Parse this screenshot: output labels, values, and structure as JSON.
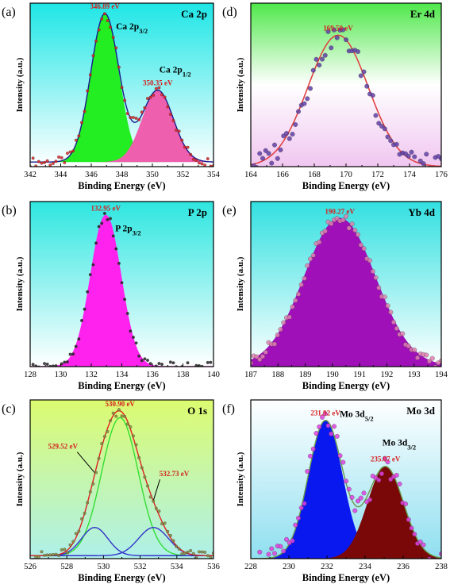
{
  "chart_data": [
    {
      "id": "a",
      "type": "area",
      "panel_letter": "(a)",
      "title": "Ca 2p",
      "xlabel": "Binding Energy (eV)",
      "ylabel": "Intensity (a.u.)",
      "xlim": [
        342,
        354
      ],
      "xticks": [
        342,
        344,
        346,
        348,
        350,
        352,
        354
      ],
      "ylim": [
        0,
        1.07
      ],
      "bg": [
        "#1fe6e6",
        "#ffffff"
      ],
      "baseline": 0.03,
      "peaks": [
        {
          "name": "Ca 2p3/2",
          "label_main": "Ca 2p",
          "label_sub": "3/2",
          "center": 346.89,
          "center_label": "346.89 eV",
          "height": 0.97,
          "sigma": 0.92,
          "color": "#22ee22"
        },
        {
          "name": "Ca 2p1/2",
          "label_main": "Ca 2p",
          "label_sub": "1/2",
          "center": 350.35,
          "center_label": "350.35 eV",
          "height": 0.47,
          "sigma": 1.02,
          "color": "#ee5fae"
        }
      ],
      "envelope_color": "#1a1a8c",
      "point_color": "#e02020"
    },
    {
      "id": "b",
      "type": "area",
      "panel_letter": "(b)",
      "title": "P 2p",
      "xlabel": "Binding Energy (eV)",
      "ylabel": "Intensity (a.u.)",
      "xlim": [
        128,
        140
      ],
      "xticks": [
        128,
        130,
        132,
        134,
        136,
        138,
        140
      ],
      "ylim": [
        0,
        1.07
      ],
      "bg": [
        "#2ee6e0",
        "#ffffff"
      ],
      "baseline": 0.0,
      "peaks": [
        {
          "name": "P 2p3/2",
          "label_main": "P 2p",
          "label_sub": "3/2",
          "center": 132.95,
          "center_label": "132.95 eV",
          "height": 0.98,
          "sigma": 0.98,
          "color": "#ff22ee"
        }
      ],
      "envelope_color": "#ff22ee",
      "point_color": "#222222"
    },
    {
      "id": "c",
      "type": "line",
      "panel_letter": "(c)",
      "title": "O 1s",
      "xlabel": "Binding Energy (eV)",
      "ylabel": "Intensity (a.u.)",
      "xlim": [
        526,
        536
      ],
      "xticks": [
        526,
        528,
        530,
        532,
        534,
        536
      ],
      "ylim": [
        0,
        1.07
      ],
      "bg": [
        "#dcfb70",
        "#aef0ea"
      ],
      "baseline": 0.02,
      "peaks": [
        {
          "name": "O 1s main",
          "center": 530.9,
          "center_label": "530.90 eV",
          "height": 0.93,
          "sigma": 1.0,
          "color": "#33dd33"
        },
        {
          "name": "O 1s low",
          "center": 529.52,
          "center_label": "529.52 eV",
          "height": 0.19,
          "sigma": 0.72,
          "color": "#3333cc"
        },
        {
          "name": "O 1s high",
          "center": 532.73,
          "center_label": "532.73 eV",
          "height": 0.19,
          "sigma": 0.82,
          "color": "#3333cc"
        }
      ],
      "envelope_color": "#e02020",
      "point_color": "#8a8a3a"
    },
    {
      "id": "d",
      "type": "line",
      "panel_letter": "(d)",
      "title": "Er 4d",
      "xlabel": "Binding Energy (eV)",
      "ylabel": "Intensity (a.u.)",
      "xlim": [
        164,
        176
      ],
      "xticks": [
        164,
        166,
        168,
        170,
        172,
        174,
        176
      ],
      "ylim": [
        0,
        1.07
      ],
      "bg": [
        "#4fe84a",
        "#ffffff",
        "#f0c6f0"
      ],
      "baseline": 0.0,
      "peaks": [
        {
          "name": "Er 4d",
          "center": 169.5,
          "center_label": "169.50 eV",
          "height": 0.86,
          "sigma": 1.9,
          "color": "#e04040"
        }
      ],
      "envelope_color": "#e04040",
      "point_color": "#6040a8"
    },
    {
      "id": "e",
      "type": "area",
      "panel_letter": "(e)",
      "title": "Yb 4d",
      "xlabel": "Binding Energy (eV)",
      "ylabel": "Intensity (a.u.)",
      "xlim": [
        187,
        194
      ],
      "xticks": [
        187,
        188,
        189,
        190,
        191,
        192,
        193,
        194
      ],
      "ylim": [
        0,
        1.07
      ],
      "bg": [
        "#33e0e0",
        "#ffffff"
      ],
      "baseline": 0.0,
      "peaks": [
        {
          "name": "Yb 4d",
          "center": 190.27,
          "center_label": "190.27 eV",
          "height": 0.96,
          "sigma": 1.3,
          "color": "#9f10b8"
        }
      ],
      "envelope_color": "#9f10b8",
      "point_color": "#e080b0"
    },
    {
      "id": "f",
      "type": "area",
      "panel_letter": "(f)",
      "title": "Mo 3d",
      "xlabel": "Binding Energy (eV)",
      "ylabel": "Intensity (a.u.)",
      "xlim": [
        228,
        238
      ],
      "xticks": [
        228,
        230,
        232,
        234,
        236,
        238
      ],
      "ylim": [
        0,
        1.07
      ],
      "bg": [
        "#ffffff",
        "#8fdff0"
      ],
      "baseline": 0.0,
      "peaks": [
        {
          "name": "Mo 3d5/2",
          "label_main": "Mo 3d",
          "label_sub": "5/2",
          "center": 231.92,
          "center_label": "231.92 eV",
          "height": 0.93,
          "sigma": 0.9,
          "color": "#0a18f0"
        },
        {
          "name": "Mo 3d3/2",
          "label_main": "Mo 3d",
          "label_sub": "3/2",
          "center": 235.07,
          "center_label": "235.07 eV",
          "height": 0.62,
          "sigma": 0.95,
          "color": "#7a0808"
        }
      ],
      "envelope_color": "#6a9a4a",
      "point_color": "#e040e0"
    }
  ]
}
